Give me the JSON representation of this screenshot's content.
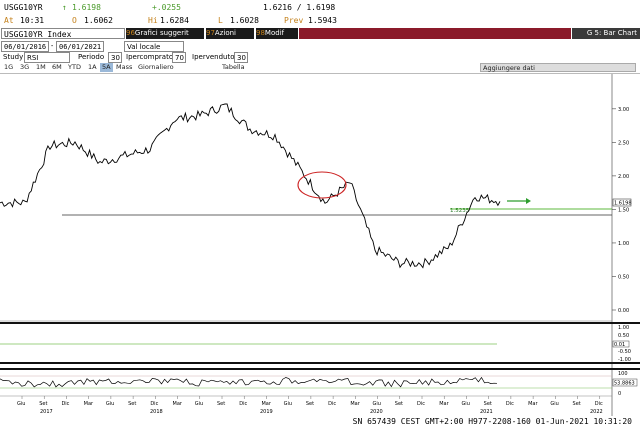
{
  "header": {
    "ticker": "USGG10YR",
    "last_arrow": "↑",
    "last": "1.6198",
    "change": "+.0255",
    "bid_ask": "1.6216 / 1.6198",
    "at_label": "At",
    "at_time": "10:31",
    "open_label": "O",
    "open": "1.6062",
    "hi_label": "Hi",
    "hi": "1.6284",
    "lo_label": "L",
    "lo": "1.6028",
    "prev_label": "Prev",
    "prev": "1.5943"
  },
  "toolbar": {
    "security": "USGG10YR Index",
    "btn1_num": "96",
    "btn1_label": "Grafici suggerit",
    "btn2_num": "97",
    "btn2_label": "Azioni",
    "btn3_num": "98",
    "btn3_label": "Modif",
    "page_title": "G 5: Bar Chart"
  },
  "row3": {
    "date_from": "06/01/2016",
    "date_to": "06/01/2021",
    "currency": "Val locale"
  },
  "row4": {
    "study_label": "Study",
    "study": "RSI",
    "period_label": "Periodo",
    "period": "30",
    "overbought_label": "Ipercomprato",
    "overbought": "70",
    "oversold_label": "Ipervenduto",
    "oversold": "30"
  },
  "row5": {
    "ranges": [
      "1G",
      "3G",
      "1M",
      "6M",
      "YTD",
      "1A",
      "5A",
      "Mass",
      "Giornaliero"
    ],
    "table_label": "Tabella",
    "add_data": "Aggiungere dati"
  },
  "colors": {
    "price_line": "#000000",
    "highlight_ellipse": "#cc2222",
    "accent_green": "#2e9e2e",
    "maroon_bar": "#8b1a2a",
    "toolbar_dark": "#1a1a1a"
  },
  "chart_data": {
    "type": "line",
    "x": [
      "2016-06",
      "2016-09",
      "2016-12",
      "2017-03",
      "2017-06",
      "2017-09",
      "2017-12",
      "2018-03",
      "2018-06",
      "2018-09",
      "2018-12",
      "2019-03",
      "2019-06",
      "2019-09",
      "2019-12",
      "2020-03",
      "2020-06",
      "2020-09",
      "2020-12",
      "2021-03",
      "2021-06"
    ],
    "series": [
      {
        "values": [
          1.6,
          1.6,
          2.45,
          2.5,
          2.2,
          2.3,
          2.4,
          2.85,
          2.9,
          3.05,
          2.7,
          2.6,
          2.1,
          1.6,
          1.9,
          0.9,
          0.7,
          0.7,
          0.95,
          1.7,
          1.62
        ]
      }
    ],
    "ylim": [
      0,
      3.4
    ],
    "y_ticks": [
      "3.00",
      "2.50",
      "2.00",
      "1.50",
      "1.00",
      "0.50",
      "0.00"
    ],
    "last_label": "1.6198",
    "level_label": "1.5235",
    "panel2_ticks": [
      "1.00",
      "0.50",
      "0.00",
      "-0.50",
      "-1.00"
    ],
    "panel2_label": "0.01",
    "rsi_ticks": [
      "100",
      "50",
      "0"
    ],
    "rsi_label": "53.8863",
    "x_month_ticks": [
      "Giu",
      "Set",
      "Dic",
      "Mar",
      "Giu",
      "Set",
      "Dic",
      "Mar",
      "Giu",
      "Set",
      "Dic",
      "Mar",
      "Giu",
      "Set",
      "Dic",
      "Mar",
      "Giu",
      "Set",
      "Dic",
      "Mar",
      "Giu",
      "Set",
      "Dic",
      "Mar",
      "Giu",
      "Set",
      "Dic"
    ],
    "x_year_ticks": [
      "2017",
      "2018",
      "2019",
      "2020",
      "2021",
      "2022"
    ]
  },
  "status_bar": "SN 657439 CEST GMT+2:00 H977-2208-160 01-Jun-2021 10:31:20"
}
